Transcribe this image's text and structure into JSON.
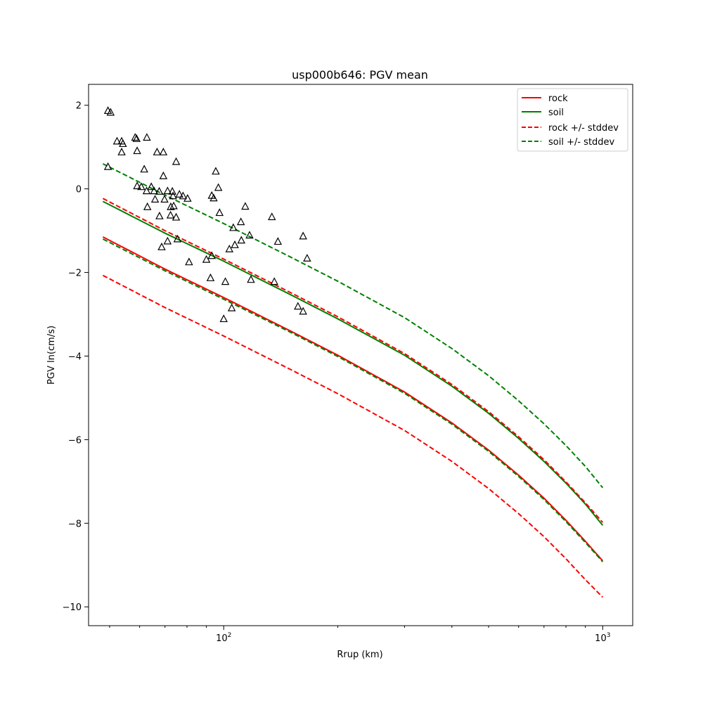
{
  "chart_data": {
    "type": "line",
    "title": "usp000b646: PGV mean",
    "xlabel": "Rrup (km)",
    "ylabel": "PGV ln(cm/s)",
    "xscale": "log",
    "xlim": [
      44,
      1200
    ],
    "ylim": [
      -10.45,
      2.5
    ],
    "x_ticks": [
      {
        "value": 100,
        "label": "10",
        "exp": "2"
      },
      {
        "value": 1000,
        "label": "10",
        "exp": "3"
      }
    ],
    "y_ticks": [
      {
        "value": 2,
        "label": "2"
      },
      {
        "value": 0,
        "label": "0"
      },
      {
        "value": -2,
        "label": "−2"
      },
      {
        "value": -4,
        "label": "−4"
      },
      {
        "value": -6,
        "label": "−6"
      },
      {
        "value": -8,
        "label": "−8"
      },
      {
        "value": -10,
        "label": "−10"
      }
    ],
    "grid": false,
    "legend_position": "upper-right",
    "series": [
      {
        "name": "rock",
        "color": "#ff0000",
        "style": "solid",
        "x": [
          48,
          70,
          100,
          150,
          200,
          300,
          400,
          500,
          600,
          700,
          800,
          900,
          1000
        ],
        "y": [
          -1.15,
          -1.92,
          -2.6,
          -3.4,
          -3.98,
          -4.86,
          -5.6,
          -6.25,
          -6.85,
          -7.4,
          -7.93,
          -8.43,
          -8.9
        ]
      },
      {
        "name": "soil",
        "color": "#008000",
        "style": "solid",
        "x": [
          48,
          70,
          100,
          150,
          200,
          300,
          400,
          500,
          600,
          700,
          800,
          900,
          1000
        ],
        "y": [
          -0.3,
          -1.06,
          -1.73,
          -2.53,
          -3.11,
          -3.98,
          -4.72,
          -5.37,
          -5.97,
          -6.52,
          -7.04,
          -7.54,
          -8.05
        ]
      },
      {
        "name": "rock +/- stddev",
        "color": "#ff0000",
        "style": "dashed",
        "x": [
          48,
          70,
          100,
          150,
          200,
          300,
          400,
          500,
          600,
          700,
          800,
          900,
          1000
        ],
        "y": [
          -0.23,
          -1.0,
          -1.68,
          -2.48,
          -3.06,
          -3.94,
          -4.68,
          -5.33,
          -5.93,
          -6.48,
          -7.01,
          -7.51,
          -7.98
        ]
      },
      {
        "name": "",
        "color": "#ff0000",
        "style": "dashed",
        "x": [
          48,
          70,
          100,
          150,
          200,
          300,
          400,
          500,
          600,
          700,
          800,
          900,
          1000
        ],
        "y": [
          -2.07,
          -2.84,
          -3.52,
          -4.32,
          -4.9,
          -5.78,
          -6.52,
          -7.17,
          -7.77,
          -8.32,
          -8.85,
          -9.35,
          -9.77
        ]
      },
      {
        "name": "soil +/- stddev",
        "color": "#008000",
        "style": "dashed",
        "x": [
          48,
          70,
          100,
          150,
          200,
          300,
          400,
          500,
          600,
          700,
          800,
          900,
          1000
        ],
        "y": [
          0.6,
          -0.15,
          -0.83,
          -1.63,
          -2.21,
          -3.08,
          -3.82,
          -4.47,
          -5.07,
          -5.62,
          -6.14,
          -6.64,
          -7.15
        ]
      },
      {
        "name": "",
        "color": "#008000",
        "style": "dashed",
        "x": [
          48,
          70,
          100,
          150,
          200,
          300,
          400,
          500,
          600,
          700,
          800,
          900,
          1000
        ],
        "y": [
          -1.2,
          -1.96,
          -2.64,
          -3.43,
          -4.01,
          -4.89,
          -5.63,
          -6.28,
          -6.88,
          -7.43,
          -7.96,
          -8.46,
          -8.92
        ]
      }
    ],
    "observations": {
      "marker": "triangle",
      "color": "#000000",
      "points": [
        [
          49.5,
          1.87
        ],
        [
          50.3,
          1.83
        ],
        [
          52.3,
          1.14
        ],
        [
          53.8,
          1.14
        ],
        [
          54.2,
          1.08
        ],
        [
          53.8,
          0.88
        ],
        [
          58.4,
          1.23
        ],
        [
          58.9,
          1.2
        ],
        [
          62.7,
          1.23
        ],
        [
          59.1,
          0.91
        ],
        [
          69.3,
          0.88
        ],
        [
          66.7,
          0.88
        ],
        [
          74.9,
          0.65
        ],
        [
          49.5,
          0.53
        ],
        [
          59.1,
          0.07
        ],
        [
          61.7,
          0.47
        ],
        [
          64.4,
          0.05
        ],
        [
          65.5,
          -0.05
        ],
        [
          60.6,
          0.05
        ],
        [
          62.6,
          -0.05
        ],
        [
          62.9,
          -0.43
        ],
        [
          67.6,
          -0.06
        ],
        [
          69.8,
          -0.25
        ],
        [
          65.9,
          -0.25
        ],
        [
          67.7,
          -0.65
        ],
        [
          71.1,
          -0.05
        ],
        [
          72.4,
          -0.63
        ],
        [
          73.2,
          -0.06
        ],
        [
          73.5,
          -0.17
        ],
        [
          73.8,
          -0.41
        ],
        [
          74.9,
          -0.68
        ],
        [
          76.4,
          -0.13
        ],
        [
          78.1,
          -0.17
        ],
        [
          80.3,
          -0.23
        ],
        [
          69.3,
          0.31
        ],
        [
          72.5,
          -0.43
        ],
        [
          75.5,
          -1.2
        ],
        [
          71.1,
          -1.25
        ],
        [
          68.6,
          -1.39
        ],
        [
          81.0,
          -1.75
        ],
        [
          90.0,
          -1.69
        ],
        [
          93.0,
          -1.6
        ],
        [
          92.3,
          -2.13
        ],
        [
          94.1,
          -0.22
        ],
        [
          93.0,
          -0.16
        ],
        [
          96.8,
          0.03
        ],
        [
          97.5,
          -0.57
        ],
        [
          95.3,
          0.42
        ],
        [
          106.0,
          -0.93
        ],
        [
          111.0,
          -0.79
        ],
        [
          107.0,
          -1.34
        ],
        [
          103.5,
          -1.44
        ],
        [
          111.3,
          -1.23
        ],
        [
          114.0,
          -0.42
        ],
        [
          117.0,
          -1.11
        ],
        [
          118.0,
          -2.17
        ],
        [
          134.0,
          -0.67
        ],
        [
          136.0,
          -2.22
        ],
        [
          139.0,
          -1.26
        ],
        [
          101.0,
          -2.22
        ],
        [
          105.0,
          -2.85
        ],
        [
          100.0,
          -3.11
        ],
        [
          157.0,
          -2.81
        ],
        [
          162.0,
          -2.93
        ],
        [
          162.0,
          -1.13
        ],
        [
          166.0,
          -1.66
        ]
      ]
    }
  }
}
